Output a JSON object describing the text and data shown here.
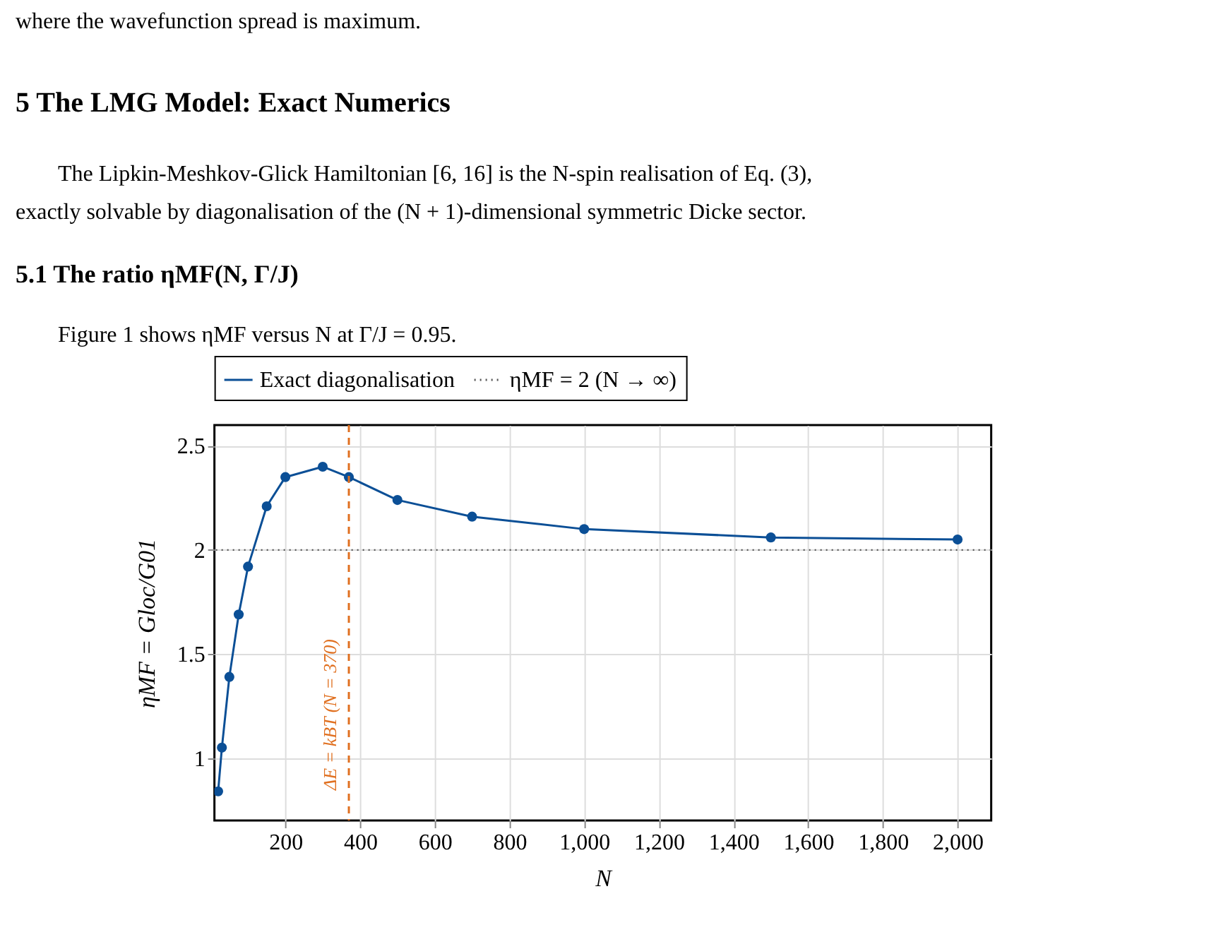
{
  "chart_data": {
    "type": "line",
    "title": "5 The LMG Model: Exact Numerics",
    "subtitle": "5.1 The ratio ηMF(N, Γ/J)",
    "annotations": [
      "where the wavefunction spread is maximum.",
      "The Lipkin-Meshkov-Glick Hamiltonian [6, 16] is the N-spin realisation of Eq. (3),",
      "exactly solvable by diagonalisation of the (N + 1)-dimensional symmetric Dicke sector.",
      "Figure 1 shows ηMF versus N at Γ/J = 0.95."
    ],
    "xlabel": "N",
    "ylabel": "ηMF = Gloc/G01",
    "x": [
      20,
      30,
      50,
      75,
      100,
      150,
      200,
      300,
      370,
      500,
      700,
      1000,
      1500,
      2000
    ],
    "series": [
      {
        "name": "Exact diagonalisation",
        "color": "#0b4f96",
        "values": [
          0.84,
          1.05,
          1.39,
          1.69,
          1.92,
          2.21,
          2.35,
          2.4,
          2.35,
          2.24,
          2.16,
          2.1,
          2.06,
          2.05
        ]
      }
    ],
    "xlim": [
      10,
      2090
    ],
    "ylim": [
      0.7,
      2.6
    ],
    "xticks": [
      200,
      400,
      600,
      800,
      {
        "value": 1000,
        "label": "1,000"
      },
      {
        "value": 1200,
        "label": "1,200"
      },
      {
        "value": 1400,
        "label": "1,400"
      },
      {
        "value": 1600,
        "label": "1,600"
      },
      {
        "value": 1800,
        "label": "1,800"
      },
      {
        "value": 2000,
        "label": "2,000"
      }
    ],
    "yticks": [
      1,
      1.5,
      2,
      2.5
    ],
    "ref_lines": [
      {
        "axis": "y",
        "value": 2,
        "label": "ηMF = 2 (N → ∞)",
        "color": "#555555",
        "line_style": "dotted"
      },
      {
        "axis": "x",
        "value": 370,
        "label": "ΔE = kBT (N = 370)",
        "color": "#e07020",
        "line_style": "dashed"
      }
    ],
    "grid": true,
    "legend": "top",
    "marker": "circle",
    "line_style": "solid"
  }
}
